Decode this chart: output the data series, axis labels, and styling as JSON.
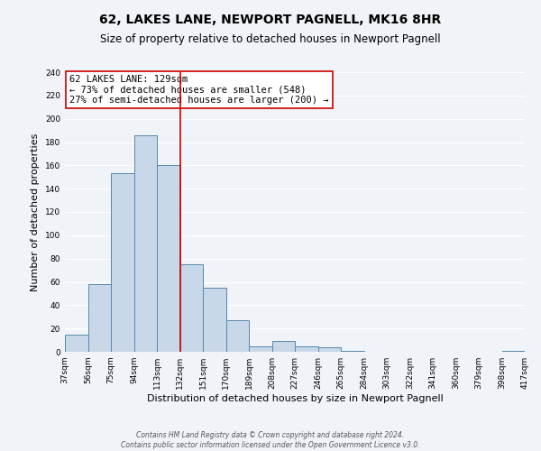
{
  "title": "62, LAKES LANE, NEWPORT PAGNELL, MK16 8HR",
  "subtitle": "Size of property relative to detached houses in Newport Pagnell",
  "xlabel": "Distribution of detached houses by size in Newport Pagnell",
  "ylabel": "Number of detached properties",
  "bin_left_edges": [
    37,
    56,
    75,
    94,
    113,
    132,
    151,
    170,
    189,
    208,
    227,
    246,
    265,
    284,
    303,
    322,
    341,
    360,
    379,
    398
  ],
  "bin_width": 19,
  "bar_heights": [
    15,
    58,
    153,
    186,
    160,
    75,
    55,
    27,
    5,
    9,
    5,
    4,
    1,
    0,
    0,
    0,
    0,
    0,
    0,
    1
  ],
  "bar_color": "#c8d8e8",
  "bar_edge_color": "#5588aa",
  "vline_x": 132,
  "vline_color": "#cc0000",
  "ylim": [
    0,
    240
  ],
  "yticks": [
    0,
    20,
    40,
    60,
    80,
    100,
    120,
    140,
    160,
    180,
    200,
    220,
    240
  ],
  "xtick_labels": [
    "37sqm",
    "56sqm",
    "75sqm",
    "94sqm",
    "113sqm",
    "132sqm",
    "151sqm",
    "170sqm",
    "189sqm",
    "208sqm",
    "227sqm",
    "246sqm",
    "265sqm",
    "284sqm",
    "303sqm",
    "322sqm",
    "341sqm",
    "360sqm",
    "379sqm",
    "398sqm",
    "417sqm"
  ],
  "annotation_title": "62 LAKES LANE: 129sqm",
  "annotation_line1": "← 73% of detached houses are smaller (548)",
  "annotation_line2": "27% of semi-detached houses are larger (200) →",
  "annotation_box_color": "#ffffff",
  "annotation_box_edge_color": "#cc0000",
  "footer_line1": "Contains HM Land Registry data © Crown copyright and database right 2024.",
  "footer_line2": "Contains public sector information licensed under the Open Government Licence v3.0.",
  "background_color": "#f0f4f8",
  "grid_color": "#ffffff",
  "title_fontsize": 10,
  "subtitle_fontsize": 8.5,
  "axis_label_fontsize": 8,
  "tick_fontsize": 6.5,
  "annotation_fontsize": 7.5,
  "footer_fontsize": 5.5
}
